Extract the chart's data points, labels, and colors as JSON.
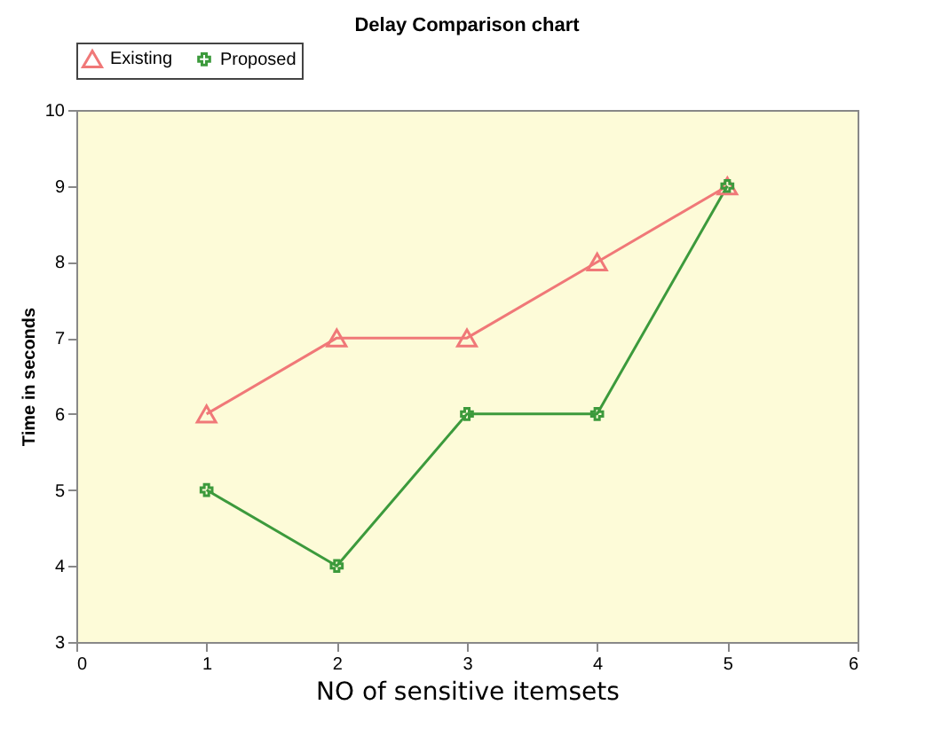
{
  "chart_data": {
    "type": "line",
    "title": "Delay Comparison chart",
    "xlabel": "NO of sensitive itemsets",
    "ylabel": "Time in seconds",
    "x": [
      1,
      2,
      3,
      4,
      5
    ],
    "series": [
      {
        "name": "Existing",
        "color": "#f07878",
        "marker": "triangle",
        "values": [
          6,
          7,
          7,
          8,
          9
        ]
      },
      {
        "name": "Proposed",
        "color": "#3c9a3c",
        "marker": "cross",
        "values": [
          5,
          4,
          6,
          6,
          9
        ]
      }
    ],
    "xlim": [
      0,
      6
    ],
    "xticks": [
      0,
      1,
      2,
      3,
      4,
      5,
      6
    ],
    "ylim": [
      3,
      10
    ],
    "yticks": [
      3,
      4,
      5,
      6,
      7,
      8,
      9,
      10
    ],
    "grid": false,
    "legend": "top left"
  }
}
